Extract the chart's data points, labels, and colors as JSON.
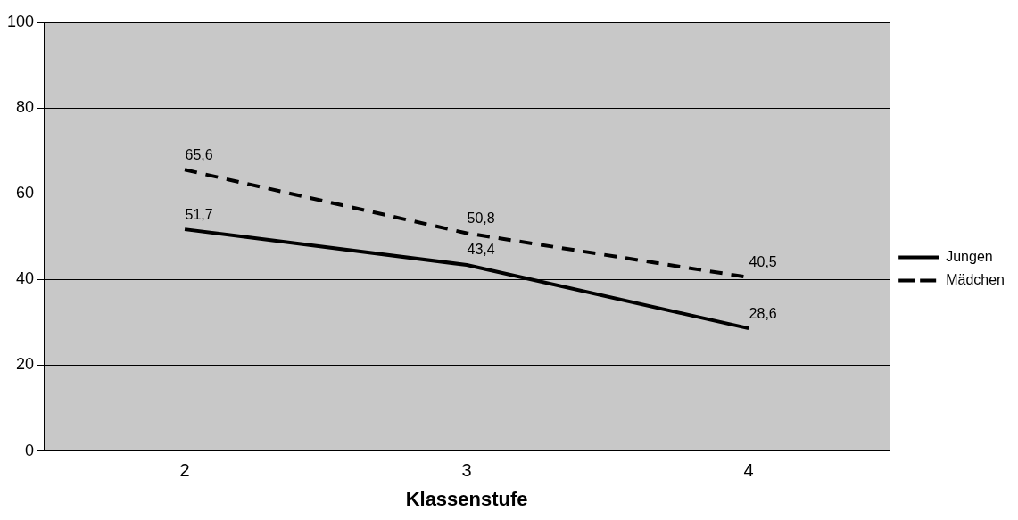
{
  "chart_data": {
    "type": "line",
    "xlabel": "Klassenstufe",
    "categories": [
      "2",
      "3",
      "4"
    ],
    "series": [
      {
        "name": "Jungen",
        "color": "#000000",
        "values": [
          51.7,
          43.4,
          28.6
        ],
        "value_labels": [
          "51,7",
          "43,4",
          "28,6"
        ],
        "line_style": "solid"
      },
      {
        "name": "Mädchen",
        "color": "#000000",
        "values": [
          65.6,
          50.8,
          40.5
        ],
        "value_labels": [
          "65,6",
          "50,8",
          "40,5"
        ],
        "line_style": "dashed"
      }
    ],
    "ylim": [
      0,
      100
    ],
    "yticks": [
      0,
      20,
      40,
      60,
      80,
      100
    ],
    "grid": "y",
    "legend": "right",
    "marker": "none"
  }
}
